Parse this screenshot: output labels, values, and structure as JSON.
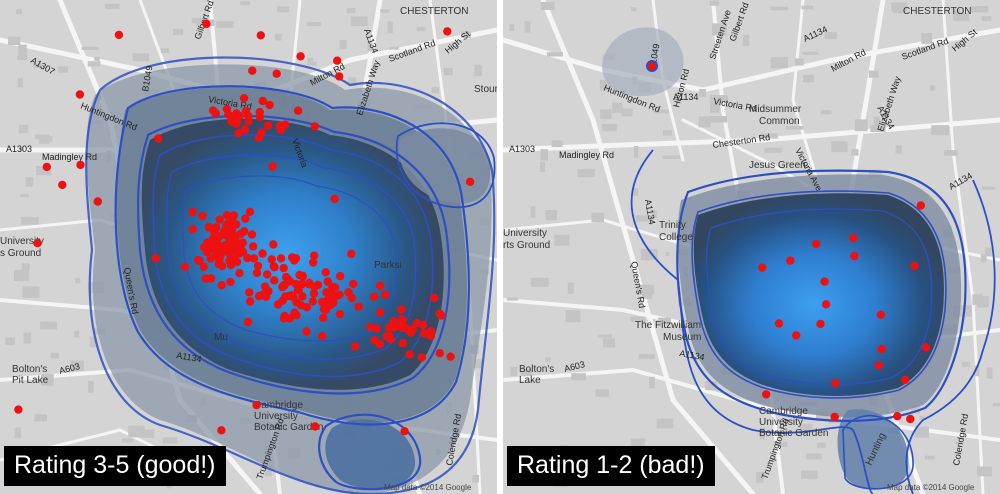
{
  "panels": [
    {
      "id": "left",
      "badge": "Rating 3-5 (good!)",
      "attribution": "Map data ©2014 Google",
      "labels": {
        "chesterton": "CHESTERTON",
        "a1307": "A1307",
        "huntingdon_rd": "Huntingdon Rd",
        "b1049": "B1049",
        "gilbert_rd": "Gilbert Rd",
        "milton_rd": "Milton Rd",
        "scotland_rd": "Scotland Rd",
        "high_st": "High St",
        "victoria_rd": "Victoria Rd",
        "a1134_top": "A1134",
        "stourbridge": "Stour",
        "a1303": "A1303",
        "madingley_rd": "Madingley Rd",
        "queens_rd": "Queen's Rd",
        "victoria_ave": "Victoria",
        "elizabeth_way": "Elizabeth Way",
        "university": "University",
        "sports_ground": "s Ground",
        "a1134_mid": "A1134",
        "a603": "A603",
        "boltons_1": "Bolton's",
        "boltons_2": "Pit Lake",
        "cambridge_1": "Cambridge",
        "cambridge_2": "University",
        "cambridge_3": "Botanic Garden",
        "trumpington": "Trumpington Rd",
        "coleridge": "Coleridge Rd",
        "mu": "Mu",
        "parkside": "Parksi"
      }
    },
    {
      "id": "right",
      "badge": "Rating 1-2 (bad!)",
      "attribution": "Map data ©2014 Google",
      "labels": {
        "chesterton": "CHESTERTON",
        "a1134_top": "A1134",
        "milton_rd": "Milton Rd",
        "gilbert_rd": "Gilbert Rd",
        "scotland_rd": "Scotland Rd",
        "high_st": "High St",
        "streeten_ave": "Streeten Ave",
        "histon_rd": "Histon Rd",
        "b1049": "B1049",
        "huntingdon_rd": "Huntingdon Rd",
        "a1134_left": "A1134",
        "victoria_rd": "Victoria Rd",
        "midsummer_1": "Midsummer",
        "midsummer_2": "Common",
        "a1134_right": "A1134",
        "chesterton_rd": "Chesterton Rd",
        "a1303": "A1303",
        "madingley_rd": "Madingley Rd",
        "jesus_green": "Jesus Green",
        "victoria_ave": "Victoria Ave",
        "elizabeth_way": "Elizabeth Way",
        "a1134_east": "A1134",
        "trinity_1": "Trinity",
        "trinity_2": "College",
        "a1134_v": "A1134",
        "queens_rd": "Queen's Rd",
        "university": "University",
        "sports_ground": "rts Ground",
        "fitzwilliam_1": "The Fitzwilliam",
        "fitzwilliam_2": "Museum",
        "a1134_mid": "A1134",
        "a603": "A603",
        "boltons_1": "Bolton's",
        "boltons_2": "Lake",
        "cambridge_1": "Cambridge",
        "cambridge_2": "University",
        "cambridge_3": "Botanic Garden",
        "trumpington": "Trumpington Rd",
        "coleridge": "Coleridge Rd",
        "hunting": "Hunting"
      }
    }
  ],
  "colors": {
    "map_background": "#d4d4d4",
    "road": "#f4f4f4",
    "building": "#bcbcbc",
    "density_outer": "#5a6c84",
    "density_core": "#3a8fe0",
    "contour_line": "#2d4fc4",
    "point": "#ee1111",
    "badge_background": "#000000",
    "badge_text": "#ffffff"
  },
  "point_counts": {
    "left": 280,
    "right": 22
  }
}
